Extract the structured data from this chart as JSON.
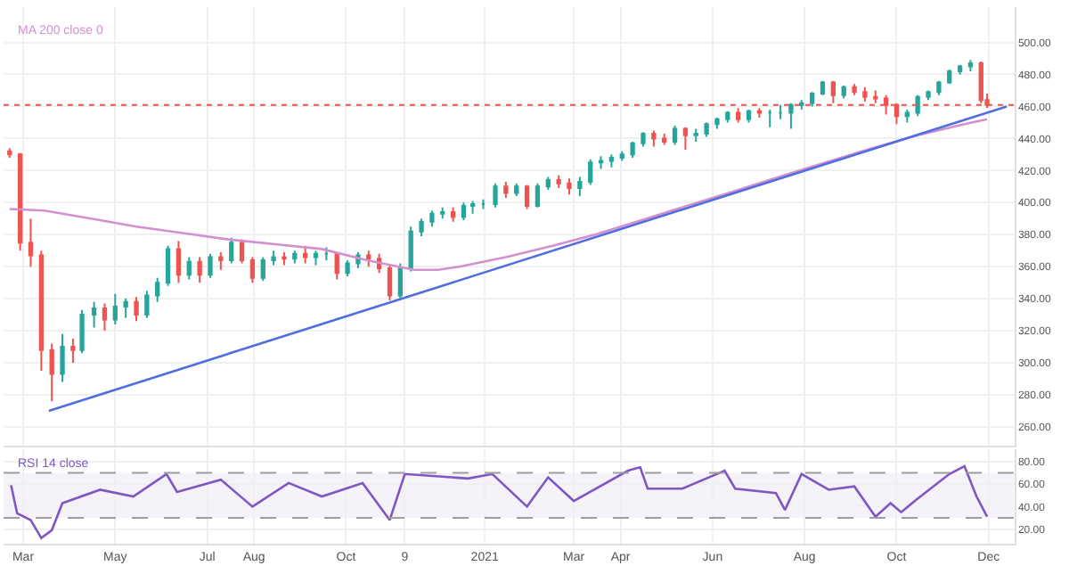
{
  "chart_data": [
    {
      "type": "candlestick",
      "x": [
        "2020-02-21",
        "2020-02-28",
        "2020-03-06",
        "2020-03-13",
        "2020-03-20",
        "2020-03-27",
        "2020-04-03",
        "2020-04-09",
        "2020-04-17",
        "2020-04-24",
        "2020-05-01",
        "2020-05-08",
        "2020-05-15",
        "2020-05-22",
        "2020-05-29",
        "2020-06-05",
        "2020-06-12",
        "2020-06-19",
        "2020-06-26",
        "2020-07-03",
        "2020-07-10",
        "2020-07-17",
        "2020-07-24",
        "2020-07-31",
        "2020-08-07",
        "2020-08-14",
        "2020-08-21",
        "2020-08-28",
        "2020-09-04",
        "2020-09-11",
        "2020-09-18",
        "2020-09-25",
        "2020-10-02",
        "2020-10-09",
        "2020-10-16",
        "2020-10-23",
        "2020-10-30",
        "2020-11-06",
        "2020-11-13",
        "2020-11-20",
        "2020-11-27",
        "2020-12-04",
        "2020-12-11",
        "2020-12-18",
        "2020-12-24",
        "2020-12-31",
        "2021-01-08",
        "2021-01-15",
        "2021-01-22",
        "2021-01-29",
        "2021-02-05",
        "2021-02-12",
        "2021-02-19",
        "2021-02-26",
        "2021-03-05",
        "2021-03-12",
        "2021-03-19",
        "2021-03-26",
        "2021-04-02",
        "2021-04-09",
        "2021-04-16",
        "2021-04-23",
        "2021-04-30",
        "2021-05-07",
        "2021-05-14",
        "2021-05-21",
        "2021-05-28",
        "2021-06-04",
        "2021-06-11",
        "2021-06-18",
        "2021-06-25",
        "2021-07-02",
        "2021-07-09",
        "2021-07-16",
        "2021-07-23",
        "2021-07-30",
        "2021-08-06",
        "2021-08-13",
        "2021-08-20",
        "2021-08-27",
        "2021-09-03",
        "2021-09-10",
        "2021-09-17",
        "2021-09-24",
        "2021-10-01",
        "2021-10-08",
        "2021-10-15",
        "2021-10-22",
        "2021-10-29",
        "2021-11-05",
        "2021-11-12",
        "2021-11-19",
        "2021-11-26",
        "2021-11-30"
      ],
      "ohlc": [
        [
          432,
          434,
          428,
          430
        ],
        [
          430,
          431,
          370,
          375
        ],
        [
          375,
          390,
          360,
          367
        ],
        [
          367,
          370,
          295,
          308
        ],
        [
          308,
          312,
          276,
          293
        ],
        [
          293,
          318,
          288,
          310
        ],
        [
          310,
          315,
          300,
          308
        ],
        [
          308,
          333,
          306,
          330
        ],
        [
          330,
          338,
          322,
          334
        ],
        [
          334,
          337,
          320,
          327
        ],
        [
          327,
          343,
          324,
          335
        ],
        [
          335,
          340,
          328,
          338
        ],
        [
          338,
          341,
          326,
          330
        ],
        [
          330,
          345,
          328,
          342
        ],
        [
          342,
          353,
          338,
          350
        ],
        [
          350,
          373,
          348,
          371
        ],
        [
          371,
          376,
          350,
          355
        ],
        [
          355,
          366,
          352,
          363
        ],
        [
          363,
          366,
          350,
          355
        ],
        [
          355,
          368,
          353,
          366
        ],
        [
          366,
          369,
          358,
          364
        ],
        [
          364,
          378,
          362,
          375
        ],
        [
          375,
          377,
          362,
          364
        ],
        [
          364,
          366,
          350,
          353
        ],
        [
          353,
          366,
          351,
          364
        ],
        [
          364,
          370,
          361,
          366
        ],
        [
          366,
          369,
          361,
          365
        ],
        [
          365,
          370,
          362,
          368
        ],
        [
          368,
          373,
          362,
          366
        ],
        [
          366,
          370,
          361,
          368
        ],
        [
          368,
          372,
          364,
          368
        ],
        [
          368,
          369,
          352,
          356
        ],
        [
          356,
          364,
          354,
          362
        ],
        [
          362,
          369,
          359,
          367
        ],
        [
          367,
          370,
          360,
          365
        ],
        [
          365,
          368,
          356,
          359
        ],
        [
          359,
          361,
          339,
          342
        ],
        [
          342,
          362,
          340,
          359
        ],
        [
          359,
          385,
          357,
          382
        ],
        [
          382,
          390,
          379,
          388
        ],
        [
          388,
          395,
          385,
          393
        ],
        [
          393,
          397,
          390,
          394
        ],
        [
          394,
          397,
          388,
          391
        ],
        [
          391,
          400,
          389,
          398
        ],
        [
          398,
          401,
          393,
          399
        ],
        [
          399,
          402,
          396,
          399
        ],
        [
          399,
          412,
          397,
          410
        ],
        [
          410,
          413,
          403,
          406
        ],
        [
          406,
          412,
          404,
          410
        ],
        [
          410,
          411,
          396,
          398
        ],
        [
          398,
          412,
          397,
          410
        ],
        [
          410,
          416,
          408,
          414
        ],
        [
          414,
          417,
          409,
          412
        ],
        [
          412,
          415,
          405,
          409
        ],
        [
          409,
          416,
          404,
          413
        ],
        [
          413,
          427,
          411,
          425
        ],
        [
          425,
          429,
          421,
          426
        ],
        [
          426,
          430,
          422,
          428
        ],
        [
          428,
          432,
          426,
          430
        ],
        [
          430,
          438,
          428,
          437
        ],
        [
          437,
          444,
          435,
          443
        ],
        [
          443,
          445,
          435,
          440
        ],
        [
          440,
          443,
          436,
          438
        ],
        [
          438,
          448,
          436,
          446
        ],
        [
          446,
          447,
          433,
          442
        ],
        [
          442,
          446,
          438,
          443
        ],
        [
          443,
          450,
          441,
          449
        ],
        [
          449,
          453,
          446,
          452
        ],
        [
          452,
          457,
          450,
          456
        ],
        [
          456,
          459,
          450,
          452
        ],
        [
          452,
          458,
          450,
          457
        ],
        [
          457,
          459,
          453,
          456
        ],
        [
          456,
          458,
          447,
          456
        ],
        [
          456,
          461,
          452,
          456
        ],
        [
          456,
          462,
          446,
          461
        ],
        [
          461,
          464,
          458,
          462
        ],
        [
          462,
          469,
          460,
          468
        ],
        [
          468,
          476,
          467,
          475
        ],
        [
          475,
          476,
          462,
          467
        ],
        [
          467,
          473,
          465,
          472
        ],
        [
          472,
          474,
          467,
          469
        ],
        [
          469,
          472,
          463,
          466
        ],
        [
          466,
          470,
          462,
          465
        ],
        [
          465,
          467,
          455,
          461
        ],
        [
          461,
          462,
          449,
          454
        ],
        [
          454,
          458,
          450,
          456
        ],
        [
          456,
          467,
          454,
          466
        ],
        [
          466,
          470,
          464,
          469
        ],
        [
          469,
          476,
          467,
          475
        ],
        [
          475,
          483,
          474,
          482
        ],
        [
          482,
          486,
          480,
          485
        ],
        [
          485,
          489,
          482,
          487
        ],
        [
          487,
          488,
          462,
          464
        ],
        [
          464,
          468,
          459,
          461
        ]
      ],
      "colors": [
        "#ef5350",
        "#ef5350",
        "#ef5350",
        "#ef5350",
        "#ef5350",
        "#26a69a",
        "#ef5350",
        "#26a69a",
        "#26a69a",
        "#ef5350",
        "#26a69a",
        "#26a69a",
        "#ef5350",
        "#26a69a",
        "#26a69a",
        "#26a69a",
        "#ef5350",
        "#26a69a",
        "#ef5350",
        "#26a69a",
        "#ef5350",
        "#26a69a",
        "#ef5350",
        "#ef5350",
        "#26a69a",
        "#26a69a",
        "#ef5350",
        "#26a69a",
        "#ef5350",
        "#26a69a",
        "#26a69a",
        "#ef5350",
        "#26a69a",
        "#26a69a",
        "#ef5350",
        "#ef5350",
        "#ef5350",
        "#26a69a",
        "#26a69a",
        "#26a69a",
        "#26a69a",
        "#26a69a",
        "#ef5350",
        "#26a69a",
        "#26a69a",
        "#26a69a",
        "#26a69a",
        "#ef5350",
        "#26a69a",
        "#ef5350",
        "#26a69a",
        "#26a69a",
        "#ef5350",
        "#ef5350",
        "#26a69a",
        "#26a69a",
        "#26a69a",
        "#26a69a",
        "#26a69a",
        "#26a69a",
        "#26a69a",
        "#ef5350",
        "#ef5350",
        "#26a69a",
        "#ef5350",
        "#26a69a",
        "#26a69a",
        "#26a69a",
        "#26a69a",
        "#ef5350",
        "#26a69a",
        "#ef5350",
        "#26a69a",
        "#26a69a",
        "#26a69a",
        "#26a69a",
        "#26a69a",
        "#26a69a",
        "#ef5350",
        "#26a69a",
        "#ef5350",
        "#ef5350",
        "#ef5350",
        "#ef5350",
        "#ef5350",
        "#26a69a",
        "#26a69a",
        "#26a69a",
        "#26a69a",
        "#26a69a",
        "#26a69a",
        "#26a69a",
        "#ef5350",
        "#ef5350"
      ],
      "series": [
        {
          "name": "MA 200 close 0",
          "type": "line",
          "color": "#d48fcf",
          "x": [
            "2020-02-21",
            "2020-03-15",
            "2020-04-15",
            "2020-05-15",
            "2020-06-15",
            "2020-07-15",
            "2020-08-15",
            "2020-09-15",
            "2020-10-15",
            "2020-11-15",
            "2020-12-01",
            "2020-12-15",
            "2021-01-15",
            "2021-02-15",
            "2021-03-15",
            "2021-04-15",
            "2021-05-15",
            "2021-06-15",
            "2021-07-15",
            "2021-08-15",
            "2021-09-15",
            "2021-10-15",
            "2021-11-15",
            "2021-11-30"
          ],
          "values": [
            396,
            395,
            390,
            385,
            381,
            377,
            374,
            371,
            364,
            358,
            358,
            360,
            366,
            373,
            380,
            389,
            398,
            407,
            416,
            425,
            434,
            442,
            449,
            452
          ]
        },
        {
          "type": "line",
          "color": "#4f6ee0",
          "x": [
            "2020-03-18",
            "2021-12-13"
          ],
          "values": [
            270,
            460
          ]
        }
      ],
      "ref_lines": [
        {
          "axis": "y",
          "value": 461,
          "color": "#ef5350",
          "line_style": "dotted"
        }
      ],
      "xlim": [
        "2020-02-17",
        "2021-12-18"
      ],
      "xticks": [
        {
          "value": "2020-03-01",
          "label": null
        },
        {
          "value": "2020-05-01",
          "label": null
        },
        {
          "value": "2020-07-01",
          "label": null
        },
        {
          "value": "2020-08-01",
          "label": null
        },
        {
          "value": "2020-10-01",
          "label": null
        },
        {
          "value": "2020-11-09",
          "label": null
        },
        {
          "value": "2021-01-01",
          "label": null
        },
        {
          "value": "2021-03-01",
          "label": null
        },
        {
          "value": "2021-04-01",
          "label": null
        },
        {
          "value": "2021-06-01",
          "label": null
        },
        {
          "value": "2021-08-01",
          "label": null
        },
        {
          "value": "2021-10-01",
          "label": null
        },
        {
          "value": "2021-12-01",
          "label": null
        }
      ],
      "ylim": [
        248,
        522
      ],
      "yticks": [
        {
          "value": 260,
          "label": "260.00"
        },
        {
          "value": 280,
          "label": "280.00"
        },
        {
          "value": 300,
          "label": "300.00"
        },
        {
          "value": 320,
          "label": "320.00"
        },
        {
          "value": 340,
          "label": "340.00"
        },
        {
          "value": 360,
          "label": "360.00"
        },
        {
          "value": 380,
          "label": "380.00"
        },
        {
          "value": 400,
          "label": "400.00"
        },
        {
          "value": 420,
          "label": "420.00"
        },
        {
          "value": 440,
          "label": "440.00"
        },
        {
          "value": 460,
          "label": "460.00"
        },
        {
          "value": 480,
          "label": "480.00"
        },
        {
          "value": 500,
          "label": "500.00"
        }
      ],
      "tick_labels": "y",
      "grid": true
    },
    {
      "type": "line",
      "x": [
        "2020-02-22",
        "2020-02-26",
        "2020-03-06",
        "2020-03-13",
        "2020-03-20",
        "2020-03-27",
        "2020-04-21",
        "2020-05-13",
        "2020-06-04",
        "2020-06-11",
        "2020-07-10",
        "2020-07-31",
        "2020-08-24",
        "2020-09-15",
        "2020-10-12",
        "2020-10-30",
        "2020-11-09",
        "2020-12-21",
        "2021-01-06",
        "2021-01-29",
        "2021-02-12",
        "2021-03-01",
        "2021-04-06",
        "2021-04-14",
        "2021-04-19",
        "2021-05-12",
        "2021-06-09",
        "2021-06-16",
        "2021-07-13",
        "2021-07-19",
        "2021-07-30",
        "2021-08-17",
        "2021-09-03",
        "2021-09-17",
        "2021-09-27",
        "2021-10-04",
        "2021-10-14",
        "2021-11-05",
        "2021-11-15",
        "2021-11-23",
        "2021-11-30"
      ],
      "series": [
        {
          "name": "RSI 14 close",
          "color": "#7e57c2",
          "values": [
            59,
            34,
            28,
            12,
            19,
            43,
            55,
            49,
            69,
            53,
            64,
            40,
            61,
            49,
            61,
            28,
            69,
            65,
            69,
            40,
            66,
            45,
            72,
            75,
            56,
            56,
            72,
            56,
            52,
            37,
            69,
            55,
            58,
            31,
            43,
            35,
            46,
            69,
            76,
            49,
            31
          ]
        }
      ],
      "ref_lines": [
        {
          "axis": "y",
          "value": 70,
          "color": "#9e9e9e",
          "line_style": "dashed"
        },
        {
          "axis": "y",
          "value": 30,
          "color": "#9e9e9e",
          "line_style": "dashed"
        }
      ],
      "bands": [
        {
          "axis": "y",
          "from": 30,
          "to": 70,
          "color": "#7e57c2"
        }
      ],
      "xlim": [
        "2020-02-17",
        "2021-12-18"
      ],
      "xticks": [
        {
          "value": "2020-03-01",
          "label": "Mar"
        },
        {
          "value": "2020-05-01",
          "label": "May"
        },
        {
          "value": "2020-07-01",
          "label": "Jul"
        },
        {
          "value": "2020-08-01",
          "label": "Aug"
        },
        {
          "value": "2020-10-01",
          "label": "Oct"
        },
        {
          "value": "2020-11-09",
          "label": "9"
        },
        {
          "value": "2021-01-01",
          "label": "2021"
        },
        {
          "value": "2021-03-01",
          "label": "Mar"
        },
        {
          "value": "2021-04-01",
          "label": "Apr"
        },
        {
          "value": "2021-06-01",
          "label": "Jun"
        },
        {
          "value": "2021-08-01",
          "label": "Aug"
        },
        {
          "value": "2021-10-01",
          "label": "Oct"
        },
        {
          "value": "2021-12-01",
          "label": "Dec"
        }
      ],
      "ylim": [
        7,
        91
      ],
      "yticks": [
        {
          "value": 20,
          "label": "20.00"
        },
        {
          "value": 40,
          "label": "40.00"
        },
        {
          "value": 60,
          "label": "60.00"
        },
        {
          "value": 80,
          "label": "80.00"
        }
      ],
      "grid": true
    }
  ]
}
